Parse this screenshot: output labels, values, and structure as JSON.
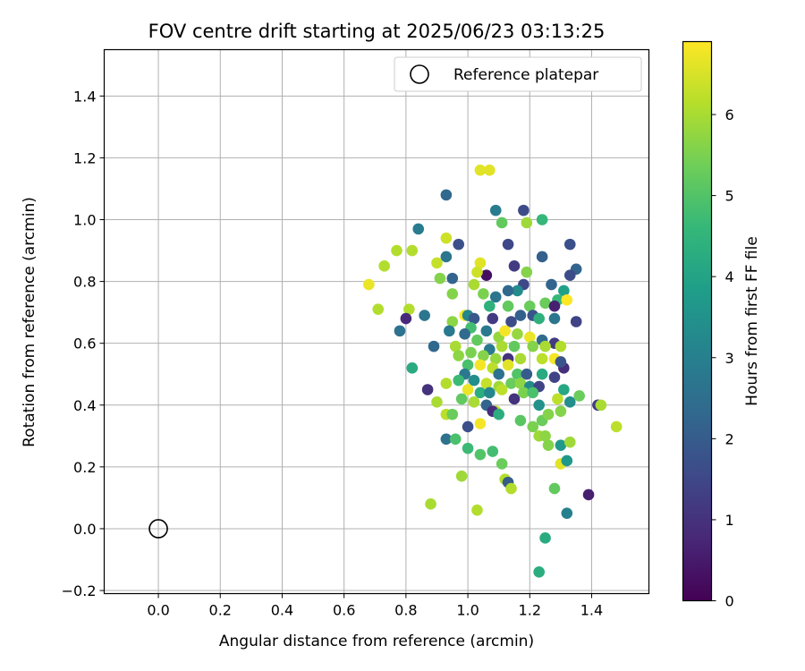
{
  "chart_data": {
    "type": "scatter",
    "title": "FOV centre drift starting at 2025/06/23 03:13:25",
    "xlabel": "Angular distance from reference (arcmin)",
    "ylabel": "Rotation from reference (arcmin)",
    "xlim": [
      -0.175,
      1.585
    ],
    "ylim": [
      -0.21,
      1.55
    ],
    "x_ticks": [
      "0.0",
      "0.2",
      "0.4",
      "0.6",
      "0.8",
      "1.0",
      "1.2",
      "1.4"
    ],
    "y_ticks": [
      "−0.2",
      "0.0",
      "0.2",
      "0.4",
      "0.6",
      "0.8",
      "1.0",
      "1.2",
      "1.4"
    ],
    "grid": true,
    "legend": {
      "position": "top-right",
      "entries": [
        "Reference platepar"
      ]
    },
    "colorbar": {
      "label": "Hours from first FF file",
      "range": [
        0,
        6.9
      ],
      "ticks": [
        "0",
        "1",
        "2",
        "3",
        "4",
        "5",
        "6"
      ],
      "colormap": "viridis"
    },
    "reference_point": {
      "x": 0.0,
      "y": 0.0,
      "label": "Reference platepar"
    },
    "points": [
      [
        0.93,
        1.08,
        2.3
      ],
      [
        1.04,
        1.16,
        6.6
      ],
      [
        1.07,
        1.16,
        6.6
      ],
      [
        1.09,
        1.03,
        2.9
      ],
      [
        1.18,
        1.03,
        1.6
      ],
      [
        1.24,
        1.0,
        4.6
      ],
      [
        1.11,
        0.99,
        5.2
      ],
      [
        1.19,
        0.99,
        5.9
      ],
      [
        0.84,
        0.97,
        2.9
      ],
      [
        0.93,
        0.94,
        6.4
      ],
      [
        0.97,
        0.92,
        1.7
      ],
      [
        1.13,
        0.92,
        1.5
      ],
      [
        1.33,
        0.92,
        1.7
      ],
      [
        0.77,
        0.9,
        6.1
      ],
      [
        0.82,
        0.9,
        6.1
      ],
      [
        0.93,
        0.88,
        2.7
      ],
      [
        1.24,
        0.88,
        2.1
      ],
      [
        0.9,
        0.86,
        6.3
      ],
      [
        1.04,
        0.86,
        6.6
      ],
      [
        1.15,
        0.85,
        1.2
      ],
      [
        1.35,
        0.84,
        2.2
      ],
      [
        0.73,
        0.85,
        6.1
      ],
      [
        1.06,
        0.82,
        0.3
      ],
      [
        1.03,
        0.83,
        6.4
      ],
      [
        1.19,
        0.83,
        5.6
      ],
      [
        1.33,
        0.82,
        1.6
      ],
      [
        0.95,
        0.81,
        2.2
      ],
      [
        0.91,
        0.81,
        5.6
      ],
      [
        1.02,
        0.79,
        6.0
      ],
      [
        1.18,
        0.79,
        1.5
      ],
      [
        1.27,
        0.79,
        2.2
      ],
      [
        0.68,
        0.79,
        6.7
      ],
      [
        1.31,
        0.77,
        3.9
      ],
      [
        1.05,
        0.76,
        5.5
      ],
      [
        1.09,
        0.75,
        2.7
      ],
      [
        1.16,
        0.77,
        3.3
      ],
      [
        1.13,
        0.77,
        2.3
      ],
      [
        1.25,
        0.73,
        5.3
      ],
      [
        1.29,
        0.74,
        4.6
      ],
      [
        1.32,
        0.74,
        6.9
      ],
      [
        0.95,
        0.76,
        5.6
      ],
      [
        1.07,
        0.72,
        4.4
      ],
      [
        1.13,
        0.72,
        5.2
      ],
      [
        1.2,
        0.72,
        5.3
      ],
      [
        1.28,
        0.72,
        0.6
      ],
      [
        0.71,
        0.71,
        6.1
      ],
      [
        0.81,
        0.71,
        6.1
      ],
      [
        0.86,
        0.69,
        2.7
      ],
      [
        0.99,
        0.69,
        6.9
      ],
      [
        1.0,
        0.69,
        3.2
      ],
      [
        1.02,
        0.68,
        1.9
      ],
      [
        1.08,
        0.68,
        1.2
      ],
      [
        1.14,
        0.67,
        1.6
      ],
      [
        1.17,
        0.69,
        2.1
      ],
      [
        1.21,
        0.69,
        1.8
      ],
      [
        1.23,
        0.68,
        4.4
      ],
      [
        1.28,
        0.68,
        2.7
      ],
      [
        1.35,
        0.67,
        1.4
      ],
      [
        0.8,
        0.68,
        0.8
      ],
      [
        0.95,
        0.67,
        5.7
      ],
      [
        1.01,
        0.65,
        4.8
      ],
      [
        1.06,
        0.64,
        2.8
      ],
      [
        1.1,
        0.62,
        5.8
      ],
      [
        1.12,
        0.64,
        6.8
      ],
      [
        1.16,
        0.63,
        5.8
      ],
      [
        1.2,
        0.62,
        6.7
      ],
      [
        1.24,
        0.61,
        2.4
      ],
      [
        1.28,
        0.6,
        1.2
      ],
      [
        0.78,
        0.64,
        2.6
      ],
      [
        0.94,
        0.64,
        2.8
      ],
      [
        0.99,
        0.63,
        2.4
      ],
      [
        1.03,
        0.61,
        5.2
      ],
      [
        1.07,
        0.58,
        2.8
      ],
      [
        1.11,
        0.59,
        6.0
      ],
      [
        1.15,
        0.59,
        5.2
      ],
      [
        1.21,
        0.59,
        5.6
      ],
      [
        1.25,
        0.59,
        6.0
      ],
      [
        1.3,
        0.59,
        6.1
      ],
      [
        0.89,
        0.59,
        2.3
      ],
      [
        0.96,
        0.59,
        6.0
      ],
      [
        1.01,
        0.57,
        5.5
      ],
      [
        1.05,
        0.56,
        5.6
      ],
      [
        1.09,
        0.55,
        5.8
      ],
      [
        1.13,
        0.55,
        1.0
      ],
      [
        1.17,
        0.55,
        6.0
      ],
      [
        1.24,
        0.55,
        6.2
      ],
      [
        1.28,
        0.55,
        6.8
      ],
      [
        1.31,
        0.52,
        0.9
      ],
      [
        1.3,
        0.54,
        1.8
      ],
      [
        0.97,
        0.56,
        5.7
      ],
      [
        1.0,
        0.53,
        4.9
      ],
      [
        1.04,
        0.53,
        6.8
      ],
      [
        1.08,
        0.52,
        6.2
      ],
      [
        1.1,
        0.5,
        2.6
      ],
      [
        1.13,
        0.53,
        6.6
      ],
      [
        1.16,
        0.5,
        5.0
      ],
      [
        1.19,
        0.5,
        2.0
      ],
      [
        1.24,
        0.5,
        4.2
      ],
      [
        1.28,
        0.49,
        1.4
      ],
      [
        0.82,
        0.52,
        4.2
      ],
      [
        0.99,
        0.5,
        2.8
      ],
      [
        1.02,
        0.48,
        3.4
      ],
      [
        1.06,
        0.47,
        6.3
      ],
      [
        1.1,
        0.46,
        5.9
      ],
      [
        1.14,
        0.47,
        5.3
      ],
      [
        1.17,
        0.47,
        5.7
      ],
      [
        1.2,
        0.46,
        3.3
      ],
      [
        1.23,
        0.46,
        1.4
      ],
      [
        1.31,
        0.45,
        4.1
      ],
      [
        0.93,
        0.47,
        6.1
      ],
      [
        0.97,
        0.48,
        4.7
      ],
      [
        1.0,
        0.45,
        6.7
      ],
      [
        1.04,
        0.44,
        4.3
      ],
      [
        1.07,
        0.44,
        3.2
      ],
      [
        1.11,
        0.45,
        6.2
      ],
      [
        1.15,
        0.42,
        1.0
      ],
      [
        1.18,
        0.44,
        5.5
      ],
      [
        1.21,
        0.44,
        4.9
      ],
      [
        1.29,
        0.42,
        6.2
      ],
      [
        1.33,
        0.41,
        3.4
      ],
      [
        0.87,
        0.45,
        1.0
      ],
      [
        0.9,
        0.41,
        6.0
      ],
      [
        0.98,
        0.42,
        5.2
      ],
      [
        1.02,
        0.41,
        6.0
      ],
      [
        1.06,
        0.4,
        2.2
      ],
      [
        1.09,
        0.38,
        6.2
      ],
      [
        1.23,
        0.4,
        3.5
      ],
      [
        1.3,
        0.38,
        5.6
      ],
      [
        1.36,
        0.43,
        5.3
      ],
      [
        1.42,
        0.4,
        1.2
      ],
      [
        1.43,
        0.4,
        6.0
      ],
      [
        0.93,
        0.37,
        6.2
      ],
      [
        0.95,
        0.37,
        5.3
      ],
      [
        1.08,
        0.38,
        0.9
      ],
      [
        1.1,
        0.37,
        4.3
      ],
      [
        1.04,
        0.34,
        6.8
      ],
      [
        1.17,
        0.35,
        5.1
      ],
      [
        1.21,
        0.33,
        5.5
      ],
      [
        1.24,
        0.35,
        5.3
      ],
      [
        1.26,
        0.37,
        5.6
      ],
      [
        1.48,
        0.33,
        6.2
      ],
      [
        1.0,
        0.33,
        1.7
      ],
      [
        0.93,
        0.29,
        2.6
      ],
      [
        0.96,
        0.29,
        4.9
      ],
      [
        1.23,
        0.3,
        5.9
      ],
      [
        1.25,
        0.3,
        5.7
      ],
      [
        1.26,
        0.27,
        5.6
      ],
      [
        1.3,
        0.27,
        3.7
      ],
      [
        1.33,
        0.28,
        5.9
      ],
      [
        1.0,
        0.26,
        4.7
      ],
      [
        1.04,
        0.24,
        5.0
      ],
      [
        1.08,
        0.25,
        4.8
      ],
      [
        1.3,
        0.21,
        6.6
      ],
      [
        1.32,
        0.22,
        3.7
      ],
      [
        1.11,
        0.21,
        5.3
      ],
      [
        0.98,
        0.17,
        5.9
      ],
      [
        1.12,
        0.16,
        6.1
      ],
      [
        1.13,
        0.15,
        2.0
      ],
      [
        1.14,
        0.13,
        6.1
      ],
      [
        1.28,
        0.13,
        5.2
      ],
      [
        0.88,
        0.08,
        6.0
      ],
      [
        1.03,
        0.06,
        6.1
      ],
      [
        1.32,
        0.05,
        3.0
      ],
      [
        1.39,
        0.11,
        0.6
      ],
      [
        1.25,
        -0.03,
        4.2
      ],
      [
        1.23,
        -0.14,
        4.3
      ]
    ]
  }
}
